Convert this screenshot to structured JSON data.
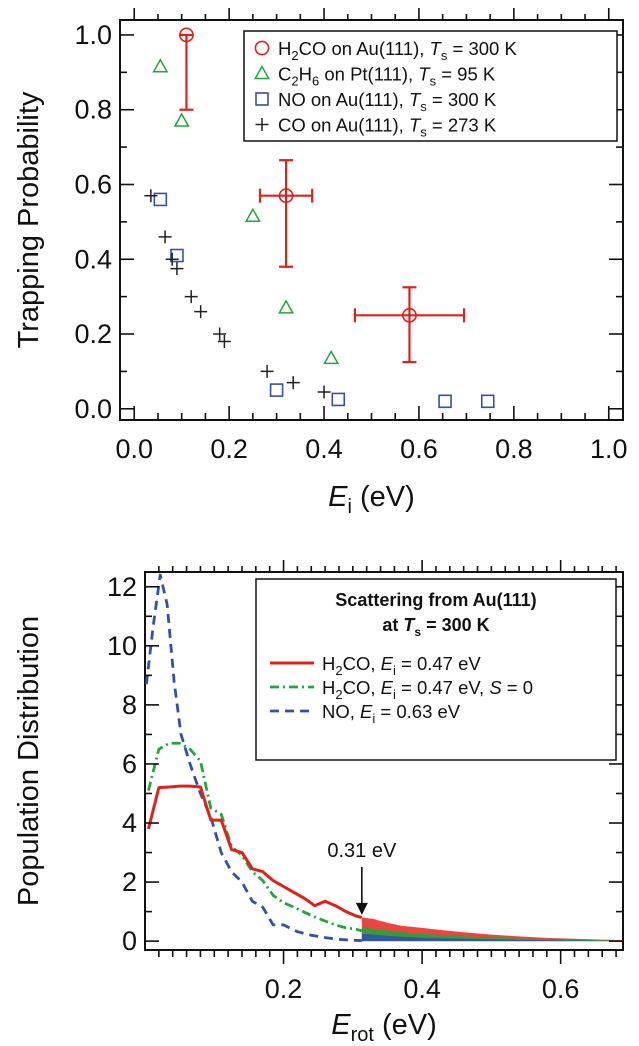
{
  "chart_data": [
    {
      "type": "scatter",
      "xlabel": "E",
      "xlabel_sub": "i",
      "xlabel_unit": " (eV)",
      "ylabel": "Trapping Probability",
      "xlim": [
        -0.03,
        1.03
      ],
      "ylim": [
        -0.03,
        1.04
      ],
      "xticks": [
        0.0,
        0.2,
        0.4,
        0.6,
        0.8,
        1.0
      ],
      "xtick_labels": [
        "0.0",
        "0.2",
        "0.4",
        "0.6",
        "0.8",
        "1.0"
      ],
      "yticks": [
        0.0,
        0.2,
        0.4,
        0.6,
        0.8,
        1.0
      ],
      "ytick_labels": [
        "0.0",
        "0.2",
        "0.4",
        "0.6",
        "0.8",
        "1.0"
      ],
      "legend_position": "top-right",
      "series": [
        {
          "name": "H2CO on Au(111), Ts = 300 K",
          "legend": {
            "pre": "H",
            "sub1": "2",
            "mid": "CO on Au(111), ",
            "italic": "T",
            "sub2": "s",
            "post": " = 300 K"
          },
          "marker": "circle",
          "color": "#e0201b",
          "points": [
            {
              "x": 0.11,
              "y": 1.0,
              "yerr_low": 0.8,
              "yerr_high": 1.0
            },
            {
              "x": 0.32,
              "y": 0.57,
              "yerr_low": 0.38,
              "yerr_high": 0.665,
              "xerr_low": 0.265,
              "xerr_high": 0.375
            },
            {
              "x": 0.58,
              "y": 0.25,
              "yerr_low": 0.125,
              "yerr_high": 0.325,
              "xerr_low": 0.465,
              "xerr_high": 0.695
            }
          ]
        },
        {
          "name": "C2H6 on Pt(111), Ts = 95 K",
          "legend": {
            "pre": "C",
            "sub1": "2",
            "mid": "H",
            "sub_mid": "6",
            "mid2": " on Pt(111), ",
            "italic": "T",
            "sub2": "s",
            "post": " = 95 K"
          },
          "marker": "triangle",
          "color": "#22a53a",
          "points": [
            {
              "x": 0.055,
              "y": 0.915
            },
            {
              "x": 0.1,
              "y": 0.77
            },
            {
              "x": 0.25,
              "y": 0.515
            },
            {
              "x": 0.32,
              "y": 0.27
            },
            {
              "x": 0.415,
              "y": 0.135
            }
          ]
        },
        {
          "name": "NO on Au(111), Ts = 300 K",
          "legend": {
            "pre": "NO on Au(111), ",
            "italic": "T",
            "sub2": "s",
            "post": " = 300 K"
          },
          "marker": "square",
          "color": "#3450a8",
          "points": [
            {
              "x": 0.055,
              "y": 0.56
            },
            {
              "x": 0.09,
              "y": 0.41
            },
            {
              "x": 0.3,
              "y": 0.05
            },
            {
              "x": 0.43,
              "y": 0.025
            },
            {
              "x": 0.655,
              "y": 0.02
            },
            {
              "x": 0.745,
              "y": 0.02
            }
          ]
        },
        {
          "name": "CO on Au(111), Ts = 273 K",
          "legend": {
            "pre": "CO on Au(111), ",
            "italic": "T",
            "sub2": "s",
            "post": " = 273 K"
          },
          "marker": "plus",
          "color": "#222222",
          "points": [
            {
              "x": 0.035,
              "y": 0.57
            },
            {
              "x": 0.065,
              "y": 0.46
            },
            {
              "x": 0.08,
              "y": 0.4
            },
            {
              "x": 0.09,
              "y": 0.375
            },
            {
              "x": 0.12,
              "y": 0.3
            },
            {
              "x": 0.14,
              "y": 0.26
            },
            {
              "x": 0.18,
              "y": 0.2
            },
            {
              "x": 0.19,
              "y": 0.18
            },
            {
              "x": 0.28,
              "y": 0.1
            },
            {
              "x": 0.335,
              "y": 0.07
            },
            {
              "x": 0.4,
              "y": 0.045
            }
          ]
        }
      ]
    },
    {
      "type": "line",
      "xlabel": "E",
      "xlabel_sub": "rot",
      "xlabel_unit": " (eV)",
      "ylabel": "Population Distribution",
      "xlim": [
        0.0,
        0.69
      ],
      "ylim": [
        -0.3,
        12.5
      ],
      "xticks": [
        0.2,
        0.4,
        0.6
      ],
      "xtick_labels": [
        "0.2",
        "0.4",
        "0.6"
      ],
      "yticks": [
        0,
        2,
        4,
        6,
        8,
        10,
        12
      ],
      "ytick_labels": [
        "0",
        "2",
        "4",
        "6",
        "8",
        "10",
        "12"
      ],
      "legend_position": "top-right",
      "legend_title_line1": "Scattering from Au(111)",
      "legend_title_line2": {
        "pre": "at ",
        "italic": "T",
        "sub": "s",
        "post": " = 300 K"
      },
      "annotation": {
        "text": "0.31 eV",
        "x": 0.313,
        "y": 0.82
      },
      "series": [
        {
          "name": "H2CO, Ei = 0.47 eV",
          "legend": {
            "pre": "H",
            "sub1": "2",
            "mid": "CO, ",
            "italic": "E",
            "sub2": "i",
            "post": " = 0.47 eV",
            "extra_italic": "",
            "extra": ""
          },
          "style": "solid",
          "color": "#e0201b",
          "x": [
            0.005,
            0.02,
            0.035,
            0.05,
            0.065,
            0.08,
            0.095,
            0.11,
            0.125,
            0.14,
            0.155,
            0.17,
            0.185,
            0.2,
            0.215,
            0.23,
            0.245,
            0.26,
            0.275,
            0.29,
            0.305,
            0.313
          ],
          "y": [
            3.8,
            5.2,
            5.22,
            5.25,
            5.25,
            5.22,
            4.1,
            4.1,
            3.1,
            3.0,
            2.45,
            2.35,
            2.05,
            1.85,
            1.65,
            1.45,
            1.2,
            1.35,
            1.2,
            1.0,
            0.85,
            0.8
          ]
        },
        {
          "name": "H2CO, Ei = 0.47 eV, S = 0",
          "legend": {
            "pre": "H",
            "sub1": "2",
            "mid": "CO, ",
            "italic": "E",
            "sub2": "i",
            "post": " = 0.47 eV, ",
            "extra_italic": "S",
            "extra": " = 0"
          },
          "style": "dashdot",
          "color": "#22a53a",
          "x": [
            0.005,
            0.02,
            0.035,
            0.05,
            0.065,
            0.08,
            0.095,
            0.11,
            0.125,
            0.14,
            0.155,
            0.17,
            0.185,
            0.2,
            0.215,
            0.23,
            0.245,
            0.26,
            0.275,
            0.29,
            0.305,
            0.313
          ],
          "y": [
            5.1,
            6.5,
            6.7,
            6.7,
            6.5,
            6.1,
            4.5,
            4.3,
            3.2,
            2.9,
            2.35,
            2.05,
            1.55,
            1.3,
            1.15,
            0.98,
            0.82,
            0.68,
            0.55,
            0.45,
            0.4,
            0.35
          ]
        },
        {
          "name": "NO, Ei = 0.63 eV",
          "legend": {
            "pre": "NO, ",
            "sub1": "",
            "mid": "",
            "italic": "E",
            "sub2": "i",
            "post": " = 0.63 eV",
            "extra_italic": "",
            "extra": ""
          },
          "style": "dashed",
          "color": "#3450a8",
          "x": [
            0.002,
            0.012,
            0.022,
            0.032,
            0.042,
            0.052,
            0.065,
            0.08,
            0.095,
            0.11,
            0.125,
            0.14,
            0.155,
            0.17,
            0.185,
            0.2,
            0.22,
            0.24,
            0.26,
            0.28,
            0.3,
            0.313
          ],
          "y": [
            8.7,
            10.7,
            12.4,
            11.4,
            8.8,
            7.0,
            6.0,
            5.0,
            4.2,
            3.0,
            2.35,
            2.0,
            1.35,
            1.15,
            0.55,
            0.55,
            0.32,
            0.2,
            0.12,
            0.06,
            0.03,
            0.02
          ]
        }
      ],
      "tail": {
        "x": [
          0.313,
          0.33,
          0.35,
          0.37,
          0.4,
          0.43,
          0.46,
          0.5,
          0.54,
          0.58,
          0.62,
          0.66,
          0.69
        ],
        "red": [
          0.8,
          0.75,
          0.62,
          0.52,
          0.45,
          0.37,
          0.3,
          0.22,
          0.16,
          0.11,
          0.08,
          0.05,
          0.04
        ],
        "green": [
          0.45,
          0.42,
          0.36,
          0.3,
          0.25,
          0.2,
          0.16,
          0.12,
          0.09,
          0.07,
          0.05,
          0.03,
          0.02
        ],
        "blue": [
          0.25,
          0.22,
          0.18,
          0.15,
          0.12,
          0.1,
          0.08,
          0.06,
          0.04,
          0.03,
          0.02,
          0.01,
          0.01
        ]
      }
    }
  ]
}
